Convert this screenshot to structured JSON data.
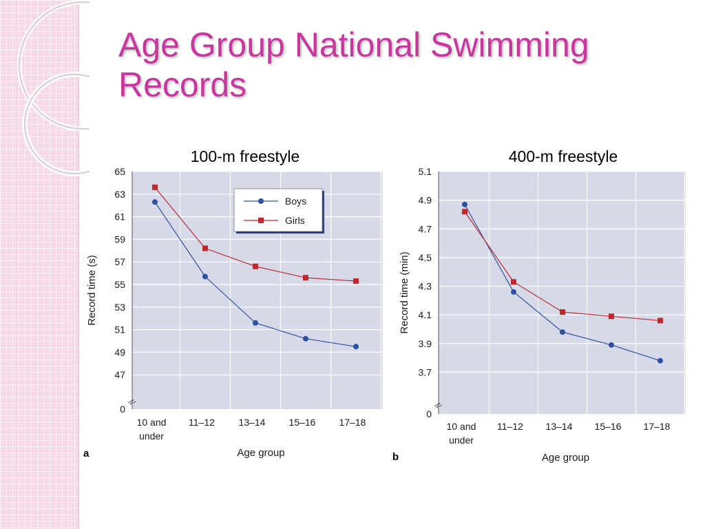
{
  "slide": {
    "title": "Age Group National Swimming Records"
  },
  "colors": {
    "title": "#c7379e",
    "boys": "#2f4fa0",
    "girls": "#c0282d",
    "plot_bg": "#d6d9e8"
  },
  "chart_data": [
    {
      "type": "line",
      "title": "100-m freestyle",
      "panel": "a",
      "xlabel": "Age group",
      "ylabel": "Record time (s)",
      "categories": [
        "10 and under",
        "11–12",
        "13–14",
        "15–16",
        "17–18"
      ],
      "category_lines": [
        [
          "10 and",
          "under"
        ],
        [
          "11–12"
        ],
        [
          "13–14"
        ],
        [
          "15–16"
        ],
        [
          "17–18"
        ]
      ],
      "yticks": [
        "0",
        "47",
        "49",
        "51",
        "53",
        "55",
        "57",
        "59",
        "61",
        "63",
        "65"
      ],
      "ylim": [
        45,
        65
      ],
      "axis_break": true,
      "grid": true,
      "legend": {
        "position": "top-right",
        "entries": [
          "Boys",
          "Girls"
        ]
      },
      "series": [
        {
          "name": "Boys",
          "marker": "circle",
          "values": [
            62.3,
            55.7,
            51.6,
            50.2,
            49.5
          ]
        },
        {
          "name": "Girls",
          "marker": "square",
          "values": [
            63.6,
            58.2,
            56.6,
            55.6,
            55.3
          ]
        }
      ]
    },
    {
      "type": "line",
      "title": "400-m freestyle",
      "panel": "b",
      "xlabel": "Age group",
      "ylabel": "Record time (min)",
      "categories": [
        "10 and under",
        "11–12",
        "13–14",
        "15–16",
        "17–18"
      ],
      "category_lines": [
        [
          "10 and",
          "under"
        ],
        [
          "11–12"
        ],
        [
          "13–14"
        ],
        [
          "15–16"
        ],
        [
          "17–18"
        ]
      ],
      "yticks": [
        "0",
        "3.7",
        "3.9",
        "4.1",
        "4.3",
        "4.5",
        "4.7",
        "4.9",
        "5.1"
      ],
      "ylim": [
        3.5,
        5.1
      ],
      "axis_break": true,
      "grid": true,
      "series": [
        {
          "name": "Boys",
          "marker": "circle",
          "values": [
            4.87,
            4.26,
            3.98,
            3.89,
            3.78
          ]
        },
        {
          "name": "Girls",
          "marker": "square",
          "values": [
            4.82,
            4.33,
            4.12,
            4.09,
            4.06
          ]
        }
      ]
    }
  ]
}
